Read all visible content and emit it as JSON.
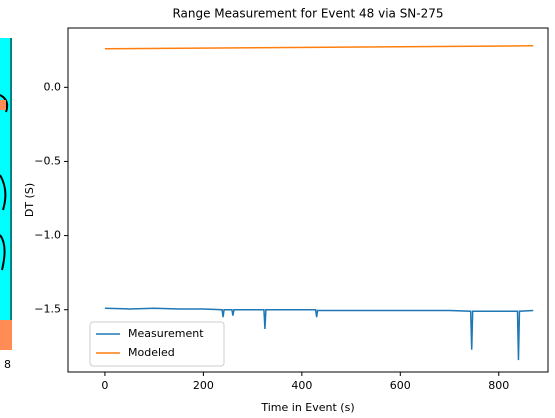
{
  "left_panel_label": "8",
  "chart_data": {
    "type": "line",
    "title": "Range Measurement for Event 48 via SN-275",
    "xlabel": "Time in Event (s)",
    "ylabel": "DT (S)",
    "series": [
      {
        "name": "Measurement",
        "color": "#1f77b4",
        "x": [
          0,
          50,
          100,
          150,
          200,
          238,
          240,
          242,
          258,
          260,
          262,
          300,
          323,
          325,
          327,
          400,
          428,
          430,
          432,
          500,
          600,
          700,
          743,
          745,
          747,
          800,
          830,
          838,
          840,
          842,
          870
        ],
        "values": [
          -1.49,
          -1.495,
          -1.49,
          -1.495,
          -1.495,
          -1.5,
          -1.55,
          -1.5,
          -1.5,
          -1.54,
          -1.5,
          -1.5,
          -1.5,
          -1.63,
          -1.5,
          -1.5,
          -1.5,
          -1.55,
          -1.505,
          -1.505,
          -1.505,
          -1.505,
          -1.51,
          -1.77,
          -1.51,
          -1.51,
          -1.51,
          -1.51,
          -1.84,
          -1.51,
          -1.505
        ]
      },
      {
        "name": "Modeled",
        "color": "#ff7f0e",
        "x": [
          0,
          870
        ],
        "values": [
          0.26,
          0.28
        ]
      }
    ],
    "xlim": [
      -75,
      900
    ],
    "ylim": [
      -1.92,
      0.4
    ],
    "xticks": [
      0,
      200,
      400,
      600,
      800
    ],
    "yticks": [
      {
        "value": 0,
        "label": "0.0"
      },
      {
        "value": -0.5,
        "label": "−0.5"
      },
      {
        "value": -1,
        "label": "−1.0"
      },
      {
        "value": -1.5,
        "label": "−1.5"
      }
    ],
    "legend": "lower left"
  }
}
